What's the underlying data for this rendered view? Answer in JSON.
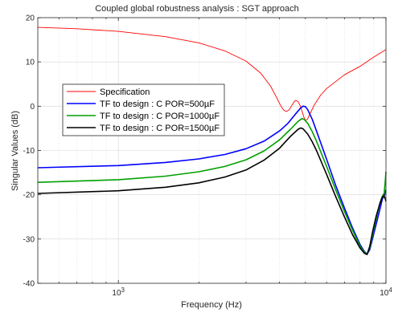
{
  "chart_data": {
    "type": "line",
    "title": "Coupled global robustness analysis : SGT approach",
    "xlabel": "Frequency (Hz)",
    "ylabel": "Singular Values (dB)",
    "xscale": "log",
    "xlim": [
      500,
      10000
    ],
    "ylim": [
      -40,
      20
    ],
    "grid": true,
    "legend_position": "upper-left",
    "x_ticks": [
      {
        "value": 1000,
        "base": "10",
        "exp": "3"
      },
      {
        "value": 10000,
        "base": "10",
        "exp": "4"
      }
    ],
    "y_ticks": [
      -40,
      -30,
      -20,
      -10,
      0,
      10,
      20
    ],
    "series": [
      {
        "name": "Specification",
        "color": "#ff0000",
        "width": 0.9,
        "points": [
          [
            500,
            17.8
          ],
          [
            700,
            17.5
          ],
          [
            1000,
            16.9
          ],
          [
            1500,
            15.7
          ],
          [
            2000,
            14.3
          ],
          [
            2500,
            12.5
          ],
          [
            3000,
            10.2
          ],
          [
            3400,
            7.5
          ],
          [
            3700,
            4.6
          ],
          [
            3900,
            2.0
          ],
          [
            4050,
            0.0
          ],
          [
            4150,
            -0.9
          ],
          [
            4250,
            -1.2
          ],
          [
            4350,
            -0.8
          ],
          [
            4450,
            0.2
          ],
          [
            4550,
            1.1
          ],
          [
            4620,
            1.3
          ],
          [
            4700,
            1.0
          ],
          [
            4780,
            0.1
          ],
          [
            4850,
            -1.0
          ],
          [
            4930,
            -2.4
          ],
          [
            5000,
            -3.2
          ],
          [
            5080,
            -3.0
          ],
          [
            5150,
            -2.3
          ],
          [
            5250,
            -1.2
          ],
          [
            5400,
            0.3
          ],
          [
            5700,
            2.5
          ],
          [
            6000,
            4.0
          ],
          [
            7000,
            7.1
          ],
          [
            8000,
            9.0
          ],
          [
            9000,
            11.1
          ],
          [
            10000,
            12.8
          ]
        ]
      },
      {
        "name": "TF to design : C POR=500µF",
        "color": "#0000ff",
        "width": 1.6,
        "points": [
          [
            500,
            -13.9
          ],
          [
            1000,
            -13.4
          ],
          [
            1500,
            -12.7
          ],
          [
            2000,
            -11.9
          ],
          [
            2500,
            -10.9
          ],
          [
            3000,
            -9.6
          ],
          [
            3500,
            -7.9
          ],
          [
            4000,
            -5.6
          ],
          [
            4300,
            -3.9
          ],
          [
            4600,
            -1.7
          ],
          [
            4800,
            -0.4
          ],
          [
            4900,
            0.0
          ],
          [
            5000,
            -0.1
          ],
          [
            5100,
            -0.8
          ],
          [
            5300,
            -2.9
          ],
          [
            5500,
            -5.6
          ],
          [
            6000,
            -12.0
          ],
          [
            6500,
            -18.0
          ],
          [
            7000,
            -23.0
          ],
          [
            7500,
            -27.5
          ],
          [
            8000,
            -31.2
          ],
          [
            8300,
            -32.8
          ],
          [
            8500,
            -33.4
          ],
          [
            8700,
            -32.4
          ],
          [
            8900,
            -30.0
          ],
          [
            9200,
            -26.6
          ],
          [
            9500,
            -23.2
          ],
          [
            9700,
            -20.9
          ],
          [
            9850,
            -20.2
          ],
          [
            10000,
            -18.9
          ]
        ]
      },
      {
        "name": "TF to design : C POR=1000µF",
        "color": "#00a000",
        "width": 1.6,
        "points": [
          [
            500,
            -17.2
          ],
          [
            1000,
            -16.6
          ],
          [
            1500,
            -15.8
          ],
          [
            2000,
            -14.8
          ],
          [
            2500,
            -13.6
          ],
          [
            3000,
            -12.1
          ],
          [
            3500,
            -10.1
          ],
          [
            4000,
            -7.6
          ],
          [
            4400,
            -5.2
          ],
          [
            4700,
            -3.4
          ],
          [
            4850,
            -2.8
          ],
          [
            4950,
            -3.0
          ],
          [
            5100,
            -3.9
          ],
          [
            5300,
            -5.7
          ],
          [
            5500,
            -7.9
          ],
          [
            6000,
            -13.6
          ],
          [
            6500,
            -19.0
          ],
          [
            7000,
            -23.8
          ],
          [
            7500,
            -28.0
          ],
          [
            8000,
            -31.6
          ],
          [
            8300,
            -33.0
          ],
          [
            8500,
            -33.4
          ],
          [
            8700,
            -32.0
          ],
          [
            8900,
            -29.2
          ],
          [
            9200,
            -25.4
          ],
          [
            9500,
            -21.8
          ],
          [
            9700,
            -20.3
          ],
          [
            9850,
            -19.7
          ],
          [
            9950,
            -16.5
          ],
          [
            10000,
            -14.8
          ]
        ]
      },
      {
        "name": "TF to design : C POR=1500µF",
        "color": "#000000",
        "width": 1.6,
        "points": [
          [
            500,
            -19.7
          ],
          [
            1000,
            -19.1
          ],
          [
            1500,
            -18.3
          ],
          [
            2000,
            -17.3
          ],
          [
            2500,
            -16.0
          ],
          [
            3000,
            -14.4
          ],
          [
            3500,
            -12.2
          ],
          [
            4000,
            -9.5
          ],
          [
            4400,
            -6.8
          ],
          [
            4700,
            -5.2
          ],
          [
            4800,
            -4.9
          ],
          [
            4900,
            -5.1
          ],
          [
            5100,
            -6.3
          ],
          [
            5300,
            -8.0
          ],
          [
            5500,
            -10.0
          ],
          [
            6000,
            -15.4
          ],
          [
            6500,
            -20.5
          ],
          [
            7000,
            -25.0
          ],
          [
            7500,
            -29.0
          ],
          [
            8000,
            -32.0
          ],
          [
            8300,
            -33.2
          ],
          [
            8500,
            -33.5
          ],
          [
            8700,
            -31.6
          ],
          [
            8900,
            -28.5
          ],
          [
            9200,
            -24.8
          ],
          [
            9500,
            -21.9
          ],
          [
            9700,
            -20.5
          ],
          [
            9850,
            -20.3
          ],
          [
            9950,
            -21.0
          ],
          [
            10000,
            -21.5
          ]
        ]
      }
    ]
  }
}
